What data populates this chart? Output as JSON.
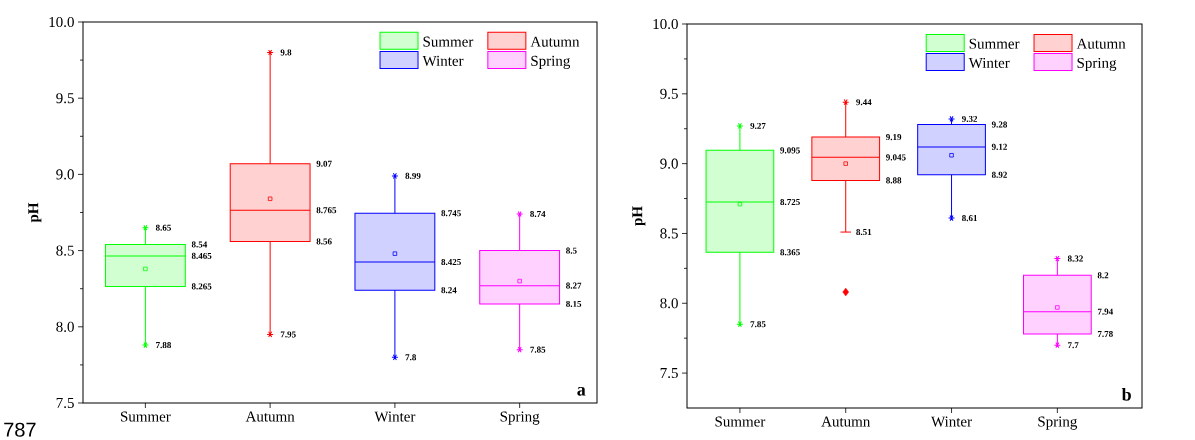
{
  "chart_data": [
    {
      "type": "box",
      "ylabel": "pH",
      "categories": [
        "Summer",
        "Autumn",
        "Winter",
        "Spring"
      ],
      "ylim": [
        7.5,
        10.0
      ],
      "yticks": [
        {
          "value": 7.5,
          "label": "7.5"
        },
        {
          "value": 8.0,
          "label": "8.0"
        },
        {
          "value": 8.5,
          "label": "8.5"
        },
        {
          "value": 9.0,
          "label": "9.0"
        },
        {
          "value": 9.5,
          "label": "9.5"
        },
        {
          "value": 10.0,
          "label": "10.0"
        }
      ],
      "legend": "top right",
      "series": [
        {
          "name": "Summer",
          "color": "#00ff00",
          "boxes": [
            {
              "low": 7.88,
              "q1": 8.265,
              "median": 8.465,
              "q3": 8.54,
              "high": 8.65,
              "mean": 8.38
            },
            null,
            null,
            null
          ]
        },
        {
          "name": "Autumn",
          "color": "#ff0000",
          "boxes": [
            null,
            {
              "low": 7.95,
              "q1": 8.56,
              "median": 8.765,
              "q3": 9.07,
              "high": 9.8,
              "mean": 8.84
            },
            null,
            null
          ]
        },
        {
          "name": "Winter",
          "color": "#0000ff",
          "boxes": [
            null,
            null,
            {
              "low": 7.8,
              "q1": 8.24,
              "median": 8.425,
              "q3": 8.745,
              "high": 8.99,
              "mean": 8.48
            },
            null
          ]
        },
        {
          "name": "Spring",
          "color": "#ff00ff",
          "boxes": [
            null,
            null,
            null,
            {
              "low": 7.85,
              "q1": 8.15,
              "median": 8.27,
              "q3": 8.5,
              "high": 8.74,
              "mean": 8.3
            }
          ]
        }
      ],
      "annotations": [
        "a",
        "787",
        "7.88",
        "8.265",
        "8.465",
        "8.54",
        "8.65",
        "7.95",
        "8.56",
        "8.765",
        "9.07",
        "9.8",
        "7.8",
        "8.24",
        "8.425",
        "8.745",
        "8.99",
        "7.85",
        "8.15",
        "8.27",
        "8.5",
        "8.74"
      ]
    },
    {
      "type": "box",
      "ylabel": "pH",
      "categories": [
        "Summer",
        "Autumn",
        "Winter",
        "Spring"
      ],
      "ylim": [
        7.25,
        10.0
      ],
      "yticks": [
        {
          "value": 7.5,
          "label": "7.5"
        },
        {
          "value": 8.0,
          "label": "8.0"
        },
        {
          "value": 8.5,
          "label": "8.5"
        },
        {
          "value": 9.0,
          "label": "9.0"
        },
        {
          "value": 9.5,
          "label": "9.5"
        },
        {
          "value": 10.0,
          "label": "10.0"
        }
      ],
      "legend": "top right",
      "series": [
        {
          "name": "Summer",
          "color": "#00ff00",
          "boxes": [
            {
              "low": 7.85,
              "q1": 8.365,
              "median": 8.725,
              "q3": 9.095,
              "high": 9.27,
              "mean": 8.71
            },
            null,
            null,
            null
          ]
        },
        {
          "name": "Autumn",
          "color": "#ff0000",
          "boxes": [
            null,
            {
              "low": 8.51,
              "q1": 8.88,
              "median": 9.045,
              "q3": 9.19,
              "high": 9.44,
              "mean": 9.0,
              "outliers": [
                8.08
              ]
            },
            null,
            null
          ]
        },
        {
          "name": "Winter",
          "color": "#0000ff",
          "boxes": [
            null,
            null,
            {
              "low": 8.61,
              "q1": 8.92,
              "median": 9.12,
              "q3": 9.28,
              "high": 9.32,
              "mean": 9.06
            },
            null
          ]
        },
        {
          "name": "Spring",
          "color": "#ff00ff",
          "boxes": [
            null,
            null,
            null,
            {
              "low": 7.7,
              "q1": 7.78,
              "median": 7.94,
              "q3": 8.2,
              "high": 8.32,
              "mean": 7.97
            }
          ]
        }
      ],
      "annotations": [
        "b",
        "7.85",
        "8.365",
        "8.725",
        "9.095",
        "9.27",
        "8.51",
        "8.88",
        "9.045",
        "9.19",
        "9.44",
        "8.61",
        "8.92",
        "9.12",
        "9.28",
        "9.32",
        "7.7",
        "7.78",
        "7.94",
        "8.2",
        "8.32"
      ]
    }
  ]
}
